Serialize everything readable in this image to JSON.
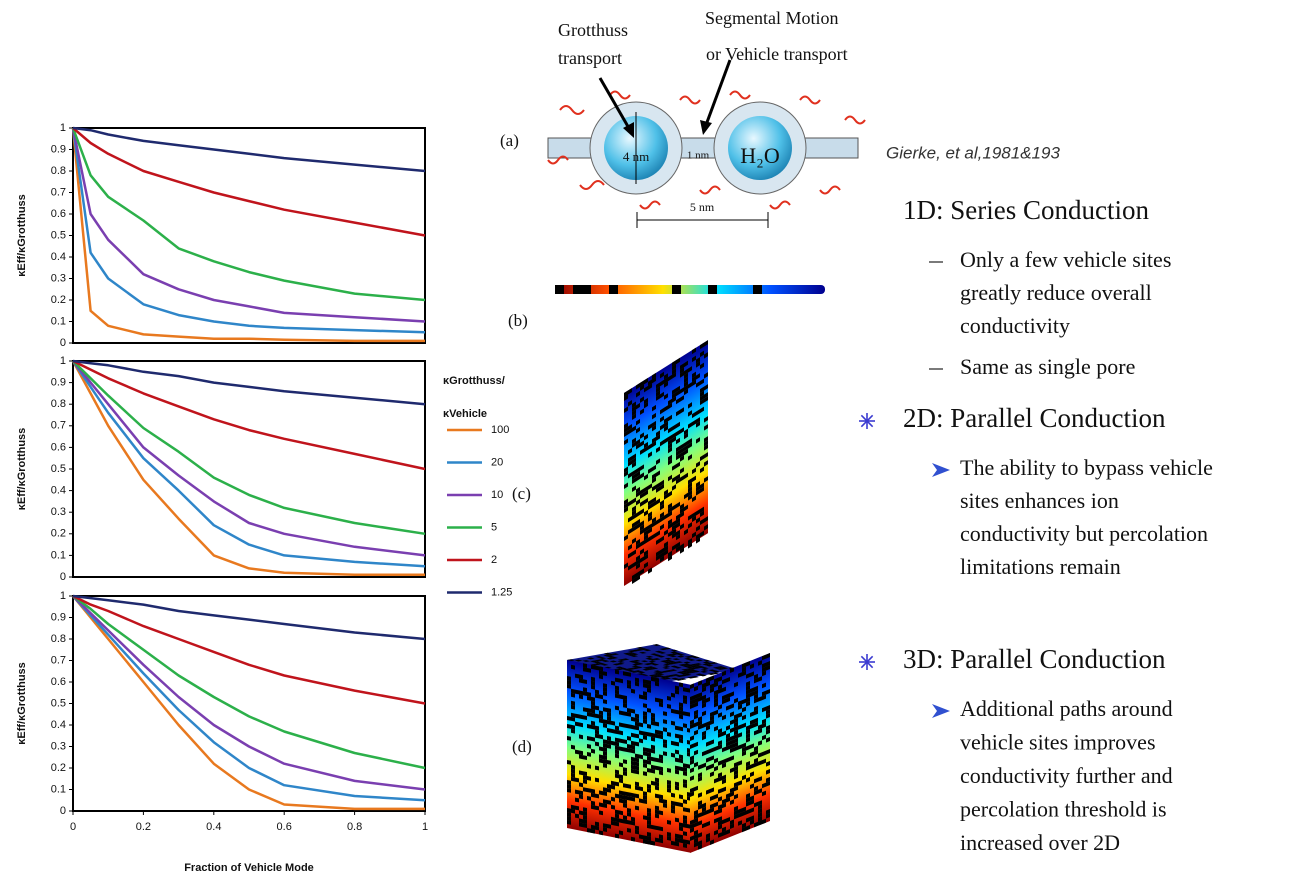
{
  "chart_data": [
    {
      "type": "line",
      "ylabel": "κEff/κGrotthuss",
      "x": [
        0,
        0.05,
        0.1,
        0.2,
        0.3,
        0.4,
        0.5,
        0.6,
        0.8,
        1
      ],
      "xlim": [
        0,
        1
      ],
      "ylim": [
        0,
        1
      ],
      "yticks": [
        0,
        0.1,
        0.2,
        0.3,
        0.4,
        0.5,
        0.6,
        0.7,
        0.8,
        0.9,
        1
      ],
      "series": [
        {
          "name": "100",
          "color": "#e8791f",
          "values": [
            1,
            0.15,
            0.08,
            0.04,
            0.03,
            0.02,
            0.02,
            0.015,
            0.01,
            0.01
          ]
        },
        {
          "name": "20",
          "color": "#2f86c9",
          "values": [
            1,
            0.42,
            0.3,
            0.18,
            0.13,
            0.1,
            0.08,
            0.07,
            0.06,
            0.05
          ]
        },
        {
          "name": "10",
          "color": "#7a3fb0",
          "values": [
            1,
            0.6,
            0.48,
            0.32,
            0.25,
            0.2,
            0.17,
            0.14,
            0.12,
            0.1
          ]
        },
        {
          "name": "5",
          "color": "#2cb04a",
          "values": [
            1,
            0.78,
            0.68,
            0.57,
            0.44,
            0.38,
            0.33,
            0.29,
            0.23,
            0.2
          ]
        },
        {
          "name": "2",
          "color": "#c0141c",
          "values": [
            1,
            0.93,
            0.88,
            0.8,
            0.75,
            0.7,
            0.66,
            0.62,
            0.56,
            0.5
          ]
        },
        {
          "name": "1.25",
          "color": "#1f2a6e",
          "values": [
            1,
            0.99,
            0.97,
            0.94,
            0.92,
            0.9,
            0.88,
            0.86,
            0.83,
            0.8
          ]
        }
      ]
    },
    {
      "type": "line",
      "ylabel": "κEff/κGrotthuss",
      "x": [
        0,
        0.05,
        0.1,
        0.2,
        0.3,
        0.4,
        0.5,
        0.6,
        0.8,
        1
      ],
      "xlim": [
        0,
        1
      ],
      "ylim": [
        0,
        1
      ],
      "yticks": [
        0,
        0.1,
        0.2,
        0.3,
        0.4,
        0.5,
        0.6,
        0.7,
        0.8,
        0.9,
        1
      ],
      "legend": true,
      "legend_title": [
        "κGrotthuss/",
        "κVehicle"
      ],
      "series": [
        {
          "name": "100",
          "color": "#e8791f",
          "values": [
            1,
            0.85,
            0.7,
            0.45,
            0.27,
            0.1,
            0.04,
            0.02,
            0.01,
            0.01
          ]
        },
        {
          "name": "20",
          "color": "#2f86c9",
          "values": [
            1,
            0.88,
            0.76,
            0.55,
            0.4,
            0.24,
            0.15,
            0.1,
            0.07,
            0.05
          ]
        },
        {
          "name": "10",
          "color": "#7a3fb0",
          "values": [
            1,
            0.9,
            0.8,
            0.6,
            0.47,
            0.35,
            0.25,
            0.2,
            0.14,
            0.1
          ]
        },
        {
          "name": "5",
          "color": "#2cb04a",
          "values": [
            1,
            0.92,
            0.84,
            0.69,
            0.58,
            0.46,
            0.38,
            0.32,
            0.25,
            0.2
          ]
        },
        {
          "name": "2",
          "color": "#c0141c",
          "values": [
            1,
            0.96,
            0.92,
            0.85,
            0.79,
            0.73,
            0.68,
            0.64,
            0.57,
            0.5
          ]
        },
        {
          "name": "1.25",
          "color": "#1f2a6e",
          "values": [
            1,
            0.99,
            0.98,
            0.95,
            0.93,
            0.9,
            0.88,
            0.86,
            0.83,
            0.8
          ]
        }
      ]
    },
    {
      "type": "line",
      "ylabel": "κEff/κGrotthuss",
      "xlabel": "Fraction of Vehicle Mode",
      "x": [
        0,
        0.05,
        0.1,
        0.2,
        0.3,
        0.4,
        0.5,
        0.6,
        0.8,
        1
      ],
      "xlim": [
        0,
        1
      ],
      "xticks": [
        0,
        0.2,
        0.4,
        0.6,
        0.8,
        1
      ],
      "ylim": [
        0,
        1
      ],
      "yticks": [
        0,
        0.1,
        0.2,
        0.3,
        0.4,
        0.5,
        0.6,
        0.7,
        0.8,
        0.9,
        1
      ],
      "series": [
        {
          "name": "100",
          "color": "#e8791f",
          "values": [
            1,
            0.9,
            0.8,
            0.6,
            0.4,
            0.22,
            0.1,
            0.03,
            0.01,
            0.01
          ]
        },
        {
          "name": "20",
          "color": "#2f86c9",
          "values": [
            1,
            0.91,
            0.82,
            0.64,
            0.47,
            0.32,
            0.2,
            0.12,
            0.07,
            0.05
          ]
        },
        {
          "name": "10",
          "color": "#7a3fb0",
          "values": [
            1,
            0.92,
            0.84,
            0.68,
            0.53,
            0.4,
            0.3,
            0.22,
            0.14,
            0.1
          ]
        },
        {
          "name": "5",
          "color": "#2cb04a",
          "values": [
            1,
            0.94,
            0.87,
            0.75,
            0.63,
            0.53,
            0.44,
            0.37,
            0.27,
            0.2
          ]
        },
        {
          "name": "2",
          "color": "#c0141c",
          "values": [
            1,
            0.96,
            0.93,
            0.86,
            0.8,
            0.74,
            0.68,
            0.63,
            0.56,
            0.5
          ]
        },
        {
          "name": "1.25",
          "color": "#1f2a6e",
          "values": [
            1,
            0.99,
            0.98,
            0.96,
            0.93,
            0.91,
            0.89,
            0.87,
            0.83,
            0.8
          ]
        }
      ]
    }
  ],
  "diagram": {
    "grotthuss": [
      "Grotthuss",
      "transport"
    ],
    "segmental": [
      "Segmental Motion",
      "or Vehicle transport"
    ],
    "panels": [
      "(a)",
      "(b)",
      "(c)",
      "(d)"
    ],
    "pore": "4 nm",
    "channel": "1 nm",
    "water": "H₂O",
    "spacing": "5 nm"
  },
  "citation": "Gierke, et al,1981&193",
  "sections": [
    {
      "heading": "1D: Series Conduction",
      "items": [
        [
          "Only a few vehicle sites",
          "greatly reduce overall",
          "conductivity"
        ],
        [
          "Same as single pore"
        ]
      ]
    },
    {
      "heading": "2D: Parallel Conduction",
      "items": [
        [
          "The ability to bypass vehicle",
          "sites enhances ion",
          "conductivity but percolation",
          "limitations remain"
        ]
      ]
    },
    {
      "heading": "3D: Parallel Conduction",
      "items": [
        [
          "Additional paths around",
          "vehicle sites improves",
          "conductivity further and",
          "percolation threshold is",
          "increased over 2D"
        ]
      ]
    }
  ]
}
